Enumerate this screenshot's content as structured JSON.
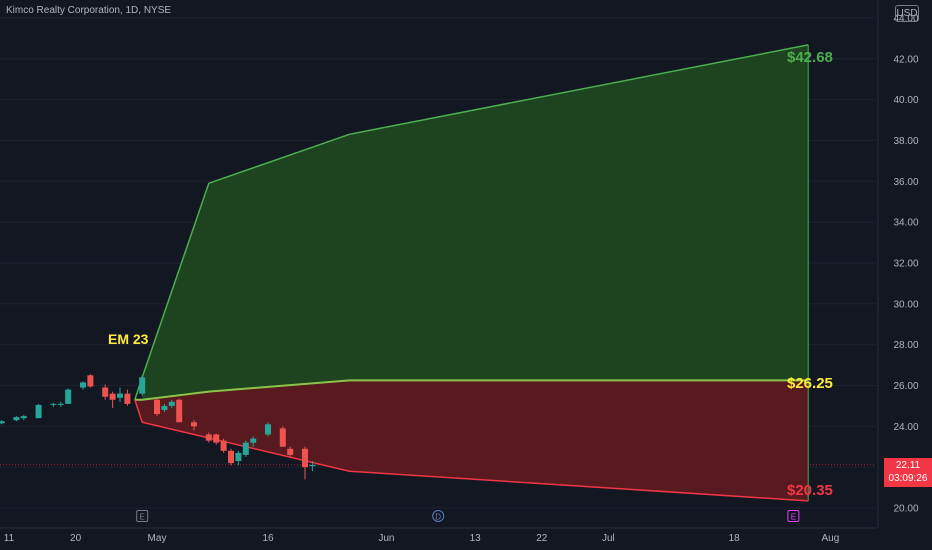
{
  "header": {
    "title": "Kimco Realty Corporation, 1D, NYSE",
    "currency": "USD"
  },
  "price_tag": {
    "price": "22.11",
    "countdown": "03:09:26"
  },
  "colors": {
    "background": "#131722",
    "up": "#26a69a",
    "down": "#ef5350",
    "green_zone_fill": "#1e4620",
    "green_zone_line": "#4caf50",
    "red_zone_fill": "#5c1a20",
    "red_zone_line": "#f23645",
    "annotation": "#ffeb3b"
  },
  "chart_data": {
    "type": "candlestick",
    "ylim": [
      19.4,
      45.3
    ],
    "y_ticks": [
      20,
      22,
      24,
      26,
      28,
      30,
      32,
      34,
      36,
      38,
      40,
      42,
      44
    ],
    "x_tick_labels": [
      {
        "label": "11",
        "day": 0
      },
      {
        "label": "20",
        "day": 9
      },
      {
        "label": "May",
        "day": 20
      },
      {
        "label": "16",
        "day": 35
      },
      {
        "label": "Jun",
        "day": 51
      },
      {
        "label": "13",
        "day": 63
      },
      {
        "label": "22",
        "day": 72
      },
      {
        "label": "Jul",
        "day": 81
      },
      {
        "label": "18",
        "day": 98
      },
      {
        "label": "Aug",
        "day": 111
      }
    ],
    "candles": [
      {
        "day": -1,
        "o": 24.15,
        "h": 24.3,
        "l": 24.1,
        "c": 24.25
      },
      {
        "day": 1,
        "o": 24.3,
        "h": 24.5,
        "l": 24.25,
        "c": 24.45
      },
      {
        "day": 2,
        "o": 24.4,
        "h": 24.55,
        "l": 24.3,
        "c": 24.5
      },
      {
        "day": 4,
        "o": 24.4,
        "h": 25.1,
        "l": 24.4,
        "c": 25.05
      },
      {
        "day": 6,
        "o": 25.05,
        "h": 25.15,
        "l": 24.95,
        "c": 25.1
      },
      {
        "day": 7,
        "o": 25.05,
        "h": 25.2,
        "l": 24.95,
        "c": 25.1
      },
      {
        "day": 8,
        "o": 25.1,
        "h": 25.85,
        "l": 25.1,
        "c": 25.8
      },
      {
        "day": 10,
        "o": 25.9,
        "h": 26.2,
        "l": 25.8,
        "c": 26.15
      },
      {
        "day": 11,
        "o": 26.5,
        "h": 26.55,
        "l": 25.9,
        "c": 25.95
      },
      {
        "day": 13,
        "o": 25.9,
        "h": 26.05,
        "l": 25.3,
        "c": 25.45
      },
      {
        "day": 14,
        "o": 25.6,
        "h": 25.7,
        "l": 24.9,
        "c": 25.3
      },
      {
        "day": 15,
        "o": 25.4,
        "h": 25.9,
        "l": 25.2,
        "c": 25.6
      },
      {
        "day": 16,
        "o": 25.6,
        "h": 25.8,
        "l": 25.0,
        "c": 25.1
      },
      {
        "day": 18,
        "o": 25.6,
        "h": 26.5,
        "l": 25.5,
        "c": 26.4
      },
      {
        "day": 20,
        "o": 25.3,
        "h": 25.4,
        "l": 24.5,
        "c": 24.6
      },
      {
        "day": 21,
        "o": 24.8,
        "h": 25.1,
        "l": 24.7,
        "c": 25.0
      },
      {
        "day": 22,
        "o": 25.0,
        "h": 25.3,
        "l": 24.9,
        "c": 25.2
      },
      {
        "day": 23,
        "o": 25.3,
        "h": 25.35,
        "l": 24.2,
        "c": 24.2
      },
      {
        "day": 25,
        "o": 24.2,
        "h": 24.3,
        "l": 23.8,
        "c": 24.0
      },
      {
        "day": 27,
        "o": 23.6,
        "h": 23.7,
        "l": 23.2,
        "c": 23.3
      },
      {
        "day": 28,
        "o": 23.6,
        "h": 23.65,
        "l": 23.1,
        "c": 23.2
      },
      {
        "day": 29,
        "o": 23.3,
        "h": 23.4,
        "l": 22.7,
        "c": 22.8
      },
      {
        "day": 30,
        "o": 22.8,
        "h": 22.9,
        "l": 22.1,
        "c": 22.2
      },
      {
        "day": 31,
        "o": 22.3,
        "h": 22.8,
        "l": 22.1,
        "c": 22.7
      },
      {
        "day": 32,
        "o": 22.6,
        "h": 23.3,
        "l": 22.5,
        "c": 23.2
      },
      {
        "day": 33,
        "o": 23.2,
        "h": 23.5,
        "l": 23.0,
        "c": 23.4
      },
      {
        "day": 35,
        "o": 23.6,
        "h": 24.2,
        "l": 23.5,
        "c": 24.1
      },
      {
        "day": 37,
        "o": 23.9,
        "h": 24.0,
        "l": 23.0,
        "c": 23.0
      },
      {
        "day": 38,
        "o": 22.9,
        "h": 23.0,
        "l": 22.5,
        "c": 22.6
      },
      {
        "day": 40,
        "o": 22.9,
        "h": 23.0,
        "l": 21.4,
        "c": 22.0
      },
      {
        "day": 41,
        "o": 22.05,
        "h": 22.3,
        "l": 21.8,
        "c": 22.11
      }
    ],
    "zones": {
      "upper_edge": [
        {
          "day": 18,
          "v": 26.4
        },
        {
          "day": 27,
          "v": 35.9
        },
        {
          "day": 46,
          "v": 38.3
        },
        {
          "day": 108,
          "v": 42.68
        }
      ],
      "mid_edge": [
        {
          "day": 18,
          "v": 25.3
        },
        {
          "day": 27,
          "v": 25.7
        },
        {
          "day": 46,
          "v": 26.25
        },
        {
          "day": 108,
          "v": 26.25
        }
      ],
      "lower_edge": [
        {
          "day": 18,
          "v": 24.2
        },
        {
          "day": 46,
          "v": 21.8
        },
        {
          "day": 108,
          "v": 20.35
        }
      ],
      "anchor": {
        "day": 17,
        "v": 25.3
      }
    },
    "annotations": {
      "em_label": "EM 23",
      "upper_value": "$42.68",
      "mid_value": "$26.25",
      "lower_value": "$20.35"
    },
    "current_price": 22.11,
    "event_markers": [
      {
        "label": "E",
        "day": 18,
        "color": "#787b86"
      },
      {
        "label": "D",
        "day": 58,
        "color": "#787b86"
      },
      {
        "label": "E",
        "day": 106,
        "color": "#e040fb"
      }
    ]
  }
}
